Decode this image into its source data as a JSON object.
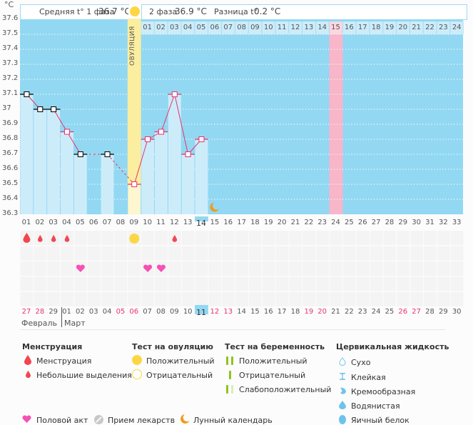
{
  "header": {
    "unit": "°C",
    "phase1_label": "Средняя t° 1 фаза",
    "phase1_value": "36.7 °C",
    "phase2_label": "2 фаза",
    "phase2_value": "36.9 °C",
    "diff_label": "Разница t°",
    "diff_value": "0.2 °C",
    "ovulation_label": "ОВУЛЯЦИЯ"
  },
  "colors": {
    "chart_bg": "#92d8f2",
    "bar_fill": "#cdecfa",
    "ovulation_col": "#fbeea0",
    "ovulation_col_low": "#fdf6cf",
    "predicted_period": "#f7b6c9",
    "line_phase2": "#e8336b",
    "marker_phase1": "#000000",
    "today_highlight": "#92d8f2",
    "weekend_red": "#e8336b"
  },
  "chart_data": {
    "type": "line",
    "title": "",
    "xlabel": "Cycle day",
    "ylabel": "°C",
    "ylim": [
      36.3,
      37.6
    ],
    "y_ticks": [
      "37.6",
      "37.5",
      "37.4",
      "37.3",
      "37.2",
      "37.1",
      "37",
      "36.9",
      "36.8",
      "36.7",
      "36.6",
      "36.5",
      "36.4",
      "36.3"
    ],
    "grid": true,
    "x_days": [
      "01",
      "02",
      "03",
      "04",
      "05",
      "06",
      "07",
      "08",
      "09",
      "10",
      "11",
      "12",
      "13",
      "14",
      "15",
      "16",
      "17",
      "18",
      "19",
      "20",
      "21",
      "22",
      "23",
      "24",
      "25",
      "26",
      "27",
      "28",
      "29",
      "30",
      "31",
      "32",
      "33"
    ],
    "post_ovulation_days": [
      "01",
      "02",
      "03",
      "04",
      "05",
      "06",
      "07",
      "08",
      "09",
      "10",
      "11",
      "12",
      "13",
      "14",
      "15",
      "16",
      "17",
      "18",
      "19",
      "20",
      "21",
      "22",
      "23",
      "24"
    ],
    "temperatures": [
      {
        "day": 1,
        "value": 37.1,
        "phase": 1
      },
      {
        "day": 2,
        "value": 37.0,
        "phase": 1
      },
      {
        "day": 3,
        "value": 37.0,
        "phase": 1
      },
      {
        "day": 4,
        "value": 36.85,
        "phase": 2
      },
      {
        "day": 5,
        "value": 36.7,
        "phase": 1
      },
      {
        "day": 7,
        "value": 36.7,
        "phase": 1
      },
      {
        "day": 9,
        "value": 36.5,
        "phase": 2
      },
      {
        "day": 10,
        "value": 36.8,
        "phase": 2
      },
      {
        "day": 11,
        "value": 36.85,
        "phase": 2
      },
      {
        "day": 12,
        "value": 37.1,
        "phase": 2
      },
      {
        "day": 13,
        "value": 36.7,
        "phase": 2
      },
      {
        "day": 14,
        "value": 36.8,
        "phase": 2
      }
    ],
    "ovulation_day": 9,
    "today_day": 14,
    "predicted_period_day": 24,
    "moon_day": 15
  },
  "events": {
    "menstruation_heavy": [
      1
    ],
    "menstruation_light": [
      2,
      3,
      4,
      12
    ],
    "ovulation_test_positive": [
      9
    ],
    "intercourse": [
      5,
      10,
      11
    ]
  },
  "dates": [
    {
      "d": "27",
      "red": true
    },
    {
      "d": "28",
      "red": true
    },
    {
      "d": "29",
      "red": false
    },
    {
      "d": "01",
      "red": false
    },
    {
      "d": "02",
      "red": false
    },
    {
      "d": "03",
      "red": false
    },
    {
      "d": "04",
      "red": false
    },
    {
      "d": "05",
      "red": true
    },
    {
      "d": "06",
      "red": true
    },
    {
      "d": "07",
      "red": false
    },
    {
      "d": "08",
      "red": false
    },
    {
      "d": "09",
      "red": false
    },
    {
      "d": "10",
      "red": false
    },
    {
      "d": "11",
      "red": false,
      "today": true
    },
    {
      "d": "12",
      "red": true
    },
    {
      "d": "13",
      "red": true
    },
    {
      "d": "14",
      "red": false
    },
    {
      "d": "15",
      "red": false
    },
    {
      "d": "16",
      "red": false
    },
    {
      "d": "17",
      "red": false
    },
    {
      "d": "18",
      "red": false
    },
    {
      "d": "19",
      "red": true
    },
    {
      "d": "20",
      "red": true
    },
    {
      "d": "21",
      "red": false
    },
    {
      "d": "22",
      "red": false
    },
    {
      "d": "23",
      "red": false
    },
    {
      "d": "24",
      "red": false
    },
    {
      "d": "25",
      "red": false
    },
    {
      "d": "26",
      "red": true
    },
    {
      "d": "27",
      "red": true
    },
    {
      "d": "28",
      "red": false
    },
    {
      "d": "29",
      "red": false
    },
    {
      "d": "30",
      "red": false
    }
  ],
  "months": {
    "feb": "Февраль",
    "mar": "Март"
  },
  "legend": {
    "menstruation": {
      "title": "Менструация",
      "items": [
        "Менструация",
        "Небольшие выделения"
      ]
    },
    "ovulation_test": {
      "title": "Тест на овуляцию",
      "items": [
        "Положительный",
        "Отрицательный"
      ]
    },
    "pregnancy_test": {
      "title": "Тест на беременность",
      "items": [
        "Положительный",
        "Отрицательный",
        "Слабоположительный"
      ]
    },
    "cervical_fluid": {
      "title": "Цервикальная жидкость",
      "items": [
        "Сухо",
        "Клейкая",
        "Кремообразная",
        "Водянистая",
        "Яичный белок"
      ]
    },
    "other": [
      "Половой акт",
      "Прием лекарств",
      "Лунный календарь"
    ]
  }
}
